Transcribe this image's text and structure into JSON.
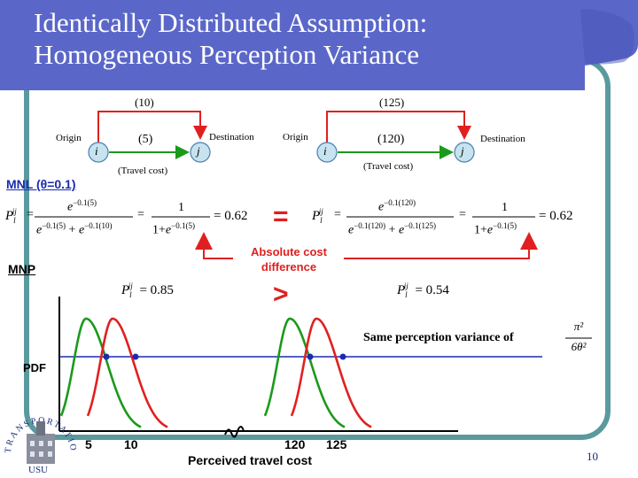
{
  "title": {
    "line1": "Identically Distributed Assumption:",
    "line2": "Homogeneous Perception Variance"
  },
  "left_network": {
    "cost_top": "(10)",
    "cost_bottom": "(5)",
    "origin_label": "Origin",
    "destination_label": "Destination",
    "node_i": "i",
    "node_j": "j",
    "travel_cost_label": "(Travel cost)"
  },
  "right_network": {
    "cost_top": "(125)",
    "cost_bottom": "(120)",
    "origin_label": "Origin",
    "destination_label": "Destination",
    "node_i": "i",
    "node_j": "j",
    "travel_cost_label": "(Travel cost)"
  },
  "mnl": {
    "heading": "MNL (θ=0.1)",
    "left_value": "= 0.62",
    "right_value": "= 0.62",
    "equals_symbol": "=",
    "left_num_exp": "−0.1(5)",
    "left_den_exp1": "−0.1(5)",
    "left_den_exp2": "−0.1(10)",
    "left_simpl_exp": "−0.1(5)",
    "right_num_exp": "−0.1(120)",
    "right_den_exp1": "−0.1(120)",
    "right_den_exp2": "−0.1(125)",
    "right_simpl_exp": "−0.1(5)",
    "absolute_cost_line1": "Absolute cost",
    "absolute_cost_line2": "difference"
  },
  "mnp": {
    "heading": "MNP",
    "left_prob": "= 0.85",
    "right_prob": "= 0.54",
    "greater_symbol": ">"
  },
  "chart_data": {
    "type": "line",
    "title": "",
    "ylabel": "PDF",
    "xlabel": "Perceived travel cost",
    "x_ticks": [
      "5",
      "10",
      "120",
      "125"
    ],
    "series": [
      {
        "name": "route cost 5",
        "color": "#1a9a1a",
        "mode": 5
      },
      {
        "name": "route cost 10",
        "color": "#e02020",
        "mode": 10
      },
      {
        "name": "route cost 120",
        "color": "#1a9a1a",
        "mode": 120
      },
      {
        "name": "route cost 125",
        "color": "#e02020",
        "mode": 125
      }
    ],
    "annotation": "Same perception variance of",
    "variance_formula": {
      "numerator": "π²",
      "denominator": "6θ²"
    }
  },
  "colors": {
    "header_blue": "#5b67c8",
    "frame_teal": "#5a9a9e",
    "route_red": "#e02020",
    "route_green": "#1a9a1a",
    "node_fill": "#c6e3ef"
  },
  "logo": {
    "arc_text": "TRANSPORTATION",
    "institution": "USU"
  },
  "page_number": "10"
}
